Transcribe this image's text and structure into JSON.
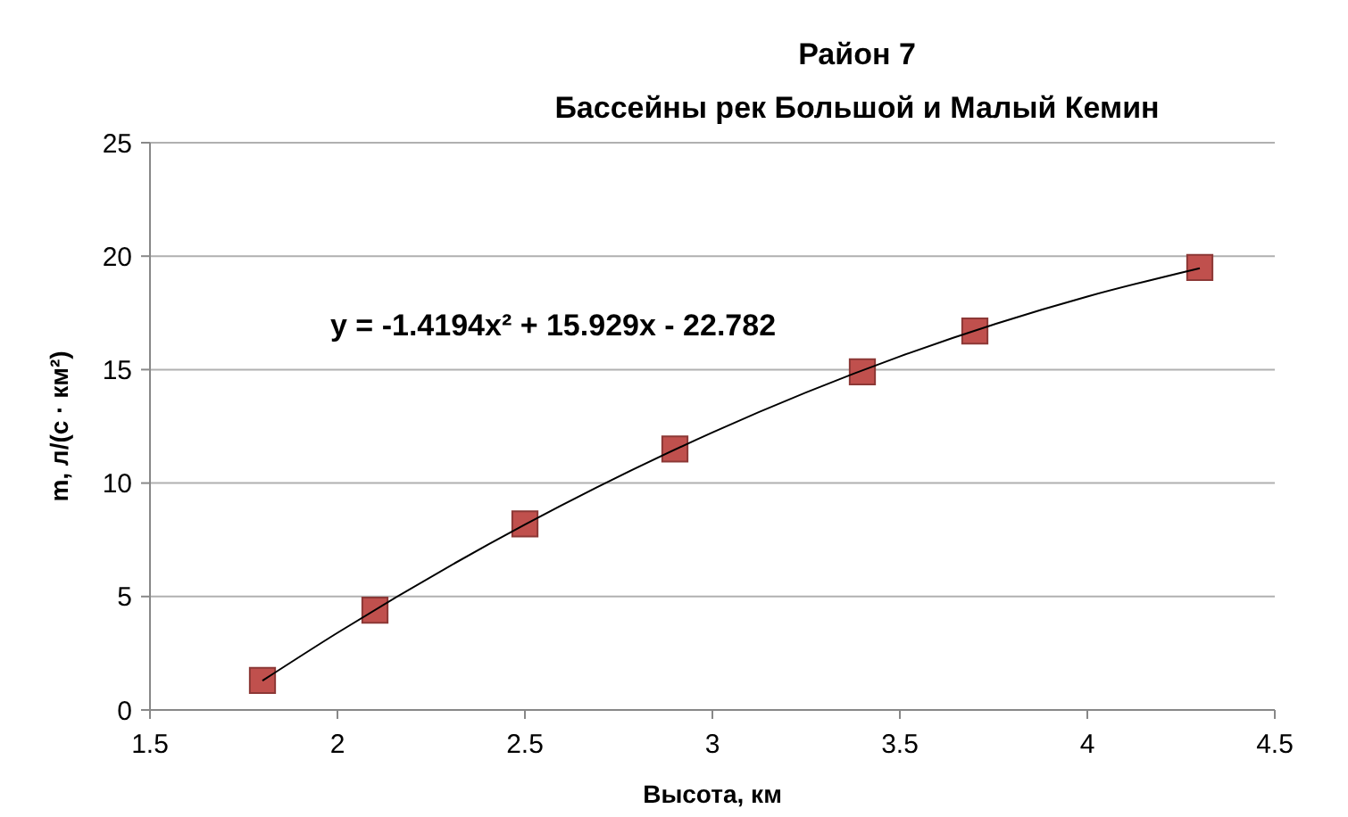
{
  "chart_data": {
    "type": "scatter",
    "title": "Район 7",
    "subtitle": "Бассейны рек Большой и Малый  Кемин",
    "xlabel": "Высота, км",
    "ylabel": "m, л/(с · км²)",
    "xlim": [
      1.5,
      4.5
    ],
    "xticks": [
      1.5,
      2,
      2.5,
      3,
      3.5,
      4,
      4.5
    ],
    "ylim": [
      0,
      25
    ],
    "yticks": [
      0,
      5,
      10,
      15,
      20,
      25
    ],
    "grid": "y",
    "marker": "square",
    "annotations": [
      "y = -1.4194x² + 15.929x - 22.782"
    ],
    "series": [
      {
        "type": "scatter",
        "color": "#c0504d",
        "x": [
          1.8,
          2.1,
          2.5,
          2.9,
          3.4,
          3.7,
          4.3
        ],
        "values": [
          1.3,
          4.4,
          8.2,
          11.5,
          14.9,
          16.7,
          19.5
        ]
      },
      {
        "type": "line",
        "color": "#000000",
        "marker": "none",
        "line_style": "solid",
        "x": [
          1.8,
          2.0,
          2.5,
          3.0,
          3.5,
          4.0,
          4.3
        ],
        "values": [
          1.29,
          3.4,
          8.17,
          12.23,
          15.58,
          18.22,
          19.47
        ]
      }
    ]
  }
}
